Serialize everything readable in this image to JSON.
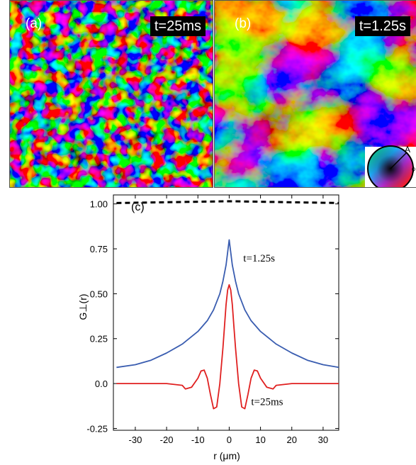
{
  "panels": [
    {
      "label": "(a)",
      "time": "t=25ms"
    },
    {
      "label": "(b)",
      "time": "t=1.25s"
    }
  ],
  "color_wheel": {
    "amplitude_label": "A",
    "phase_label": "ϕ"
  },
  "colors": {
    "series_late": "#3a5db0",
    "series_early": "#e02020",
    "reference": "#000000"
  },
  "chart_data": {
    "type": "line",
    "panel_label": "(c)",
    "xlabel": "r (μm)",
    "ylabel": "G⊥(r)",
    "xlim": [
      -37,
      35
    ],
    "ylim": [
      -0.26,
      1.05
    ],
    "x_ticks": [
      "-30",
      "-20",
      "-10",
      "0",
      "10",
      "20",
      "30"
    ],
    "y_ticks": [
      "-0.25",
      "0.0",
      "0.25",
      "0.50",
      "0.75",
      "1.00"
    ],
    "series": [
      {
        "name": "t=1.25s",
        "color": "#3a5db0",
        "x": [
          -36,
          -30,
          -25,
          -20,
          -15,
          -10,
          -7,
          -5,
          -3,
          -2,
          -1,
          -0.5,
          0,
          0.5,
          1,
          2,
          3,
          5,
          7,
          10,
          15,
          20,
          25,
          30,
          35
        ],
        "y": [
          0.09,
          0.105,
          0.13,
          0.17,
          0.22,
          0.29,
          0.35,
          0.41,
          0.5,
          0.57,
          0.66,
          0.73,
          0.8,
          0.73,
          0.66,
          0.57,
          0.5,
          0.41,
          0.35,
          0.29,
          0.22,
          0.17,
          0.13,
          0.105,
          0.09
        ]
      },
      {
        "name": "t=25ms",
        "color": "#e02020",
        "x": [
          -36,
          -20,
          -15,
          -14,
          -12,
          -10,
          -9,
          -8,
          -7,
          -6,
          -5,
          -4,
          -3,
          -2,
          -1.5,
          -1,
          -0.5,
          0,
          0.5,
          1,
          1.5,
          2,
          3,
          4,
          5,
          6,
          7,
          8,
          9,
          10,
          12,
          14,
          15,
          20,
          35
        ],
        "y": [
          0.0,
          0.0,
          -0.01,
          -0.03,
          -0.02,
          0.03,
          0.07,
          0.075,
          0.03,
          -0.06,
          -0.14,
          -0.13,
          0.0,
          0.2,
          0.32,
          0.44,
          0.52,
          0.55,
          0.52,
          0.44,
          0.32,
          0.2,
          0.0,
          -0.13,
          -0.14,
          -0.06,
          0.03,
          0.075,
          0.07,
          0.03,
          -0.02,
          -0.03,
          -0.01,
          0.0,
          0.0
        ]
      },
      {
        "name": "",
        "color": "#000000",
        "style": "dashed",
        "x": [
          -36,
          0,
          35
        ],
        "y": [
          1.005,
          1.015,
          1.005
        ]
      }
    ],
    "annotations": [
      {
        "text": "t=1.25s",
        "x": 4.5,
        "y": 0.68
      },
      {
        "text": "t=25ms",
        "x": 7,
        "y": -0.12
      }
    ]
  }
}
